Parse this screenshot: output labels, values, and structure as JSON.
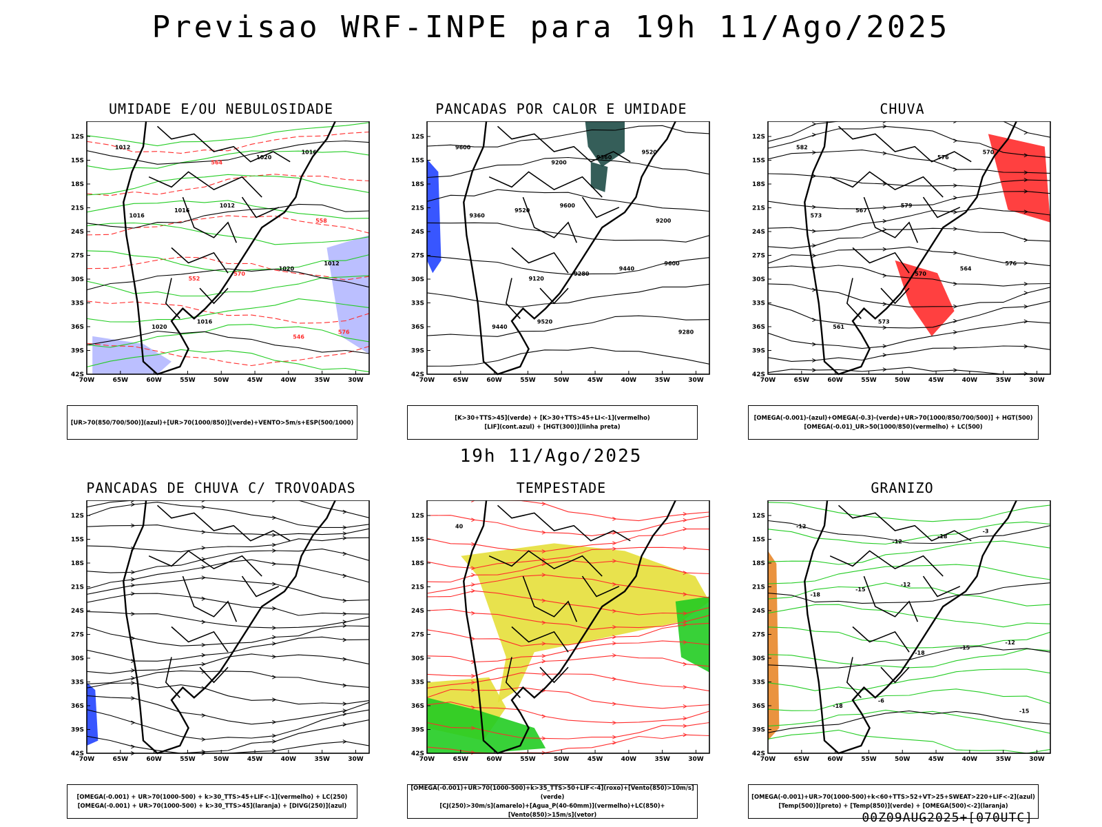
{
  "title": "Previsao WRF-INPE  para 19h 11/Ago/2025",
  "mid_title": "19h 11/Ago/2025",
  "footer": "00Z09AUG2025+[070UTC]",
  "axes": {
    "lat_labels": [
      "12S",
      "15S",
      "18S",
      "21S",
      "24S",
      "27S",
      "30S",
      "33S",
      "36S",
      "39S",
      "42S"
    ],
    "lon_labels": [
      "70W",
      "65W",
      "60W",
      "55W",
      "50W",
      "45W",
      "40W",
      "35W",
      "30W"
    ]
  },
  "colors": {
    "green": "#22cc22",
    "red": "#ff2b2b",
    "blue": "#2244ff",
    "yellow": "#e6df3a",
    "darkteal": "#1f4d47",
    "lavender": "#b4b8ff",
    "orange": "#e8872a"
  },
  "panels": [
    {
      "title": "UMIDADE E/OU NEBULOSIDADE",
      "legend": [
        "[UR>70(850/700/500)](azul)+[UR>70(1000/850)](verde)+VENTO>5m/s+ESP(500/1000)"
      ],
      "labels": [
        "1012",
        "1012",
        "1012",
        "1016",
        "1016",
        "1016",
        "1020",
        "1020",
        "1020",
        "1016",
        "570",
        "576",
        "564",
        "558",
        "552",
        "546"
      ]
    },
    {
      "title": "PANCADAS POR CALOR E UMIDADE",
      "legend": [
        "[K>30+TTS>45](verde) + [K>30+TTS>45+LI<-1](vermelho)",
        "[LIF](cont.azul) + [HGT(300)](linha preta)"
      ],
      "labels": [
        "9600",
        "9600",
        "9600",
        "9520",
        "9520",
        "9520",
        "9440",
        "9440",
        "9360",
        "9360",
        "9280",
        "9280",
        "9200",
        "9200",
        "9120"
      ]
    },
    {
      "title": "CHUVA",
      "legend": [
        "[OMEGA(-0.001)-(azul)+OMEGA(-0.3)-(verde)+UR>70(1000/850/700/500)] + HGT(500)",
        "[OMEGA(-0.01)_UR>50(1000/850)(vermelho) + LC(500)"
      ],
      "labels": [
        "582",
        "579",
        "576",
        "573",
        "570",
        "567",
        "564",
        "561",
        "576",
        "573",
        "570"
      ]
    },
    {
      "title": "PANCADAS DE CHUVA C/ TROVOADAS",
      "legend": [
        "[OMEGA(-0.001) + UR>70(1000-500) + k>30_TTS>45+LIF<-1](vermelho) + LC(250)",
        "[OMEGA(-0.001) + UR>70(1000-500) + k>30_TTS>45](laranja) + [DIVG(250)](azul)"
      ],
      "labels": []
    },
    {
      "title": "TEMPESTADE",
      "legend": [
        "[OMEGA(-0.001)+UR>70(1000-500)+k>35_TTS>50+LIF<-4](roxo)+[Vento(850)>10m/s](verde)",
        "[CJ(250)>30m/s](amarelo)+[Agua_P(40-60mm)](vermelho)+LC(850)+[Vento(850)>15m/s](vetor)"
      ],
      "labels": [
        "40"
      ]
    },
    {
      "title": "GRANIZO",
      "legend": [
        "[OMEGA(-0.001)+UR>70(1000-500)+k<60+TTS>52+VT>25+SWEAT>220+LIF<-2](azul)",
        "[Temp(500)](preto) + [Temp(850)](verde) + [OMEGA(500)<-2](laranja)"
      ],
      "labels": [
        "-12",
        "-12",
        "-12",
        "-6",
        "-3",
        "-15",
        "-15",
        "-18",
        "-18",
        "-18",
        "-18",
        "-15",
        "-12"
      ]
    }
  ]
}
